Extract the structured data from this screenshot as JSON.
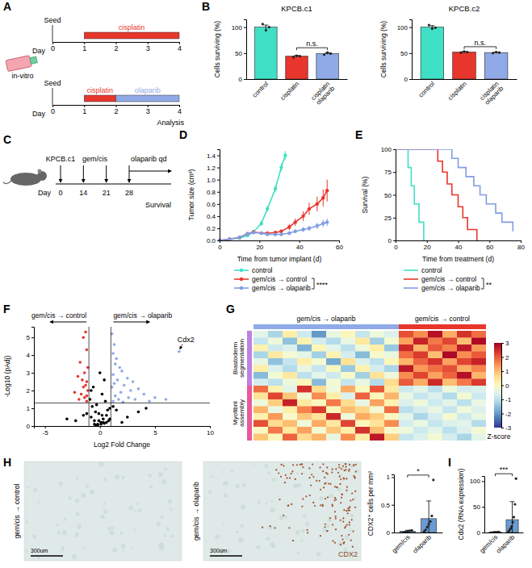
{
  "panel_letters": [
    "A",
    "B",
    "C",
    "D",
    "E",
    "F",
    "G",
    "H",
    "I"
  ],
  "panel_a": {
    "seed_label": "Seed",
    "day_label": "Day",
    "days": [
      0,
      1,
      2,
      3,
      4
    ],
    "note": "in-vitro",
    "end_label": "Analysis",
    "timelines": [
      {
        "treatments": [
          {
            "label": "cisplatin",
            "from": 1,
            "to": 4,
            "color": "#e8362c"
          }
        ]
      },
      {
        "treatments": [
          {
            "label": "cisplatin",
            "from": 1,
            "to": 2,
            "color": "#e8362c"
          },
          {
            "label": "olaparib",
            "from": 2,
            "to": 4,
            "color": "#8faae6"
          }
        ]
      }
    ]
  },
  "panel_c": {
    "model_label": "KPCB.c1",
    "day_label": "Day",
    "days": [
      0,
      14,
      21,
      28
    ],
    "gemcis_label": "gem/cis",
    "gemcis_days": [
      14,
      21
    ],
    "olaparib_label": "olaparib qd",
    "olaparib_from": 28,
    "end_label": "Survival"
  },
  "images": [
    {
      "label": "gem/cis → control",
      "scale_bar": "300um"
    },
    {
      "label": "gem/cis → olaparib",
      "scale_bar": "300um",
      "stain": "CDX2"
    }
  ],
  "chart_data": [
    {
      "type": "bar",
      "title": "KPCB.c1",
      "y_label": "Cells surviving (%)",
      "categories": [
        "control",
        "cisplatin",
        "cisplatin olaparib"
      ],
      "values": [
        100,
        44,
        49
      ],
      "errors": [
        4,
        1.5,
        1.5
      ],
      "points": [
        [
          106,
          94,
          100
        ],
        [
          42,
          45,
          44
        ],
        [
          47,
          51,
          49
        ]
      ],
      "colors": [
        "#3fe0c5",
        "#e8362c",
        "#8faae6"
      ],
      "ylim": [
        0,
        115
      ],
      "yticks": [
        0,
        50,
        100
      ],
      "annotations": [
        {
          "text": "n.s.",
          "between": [
            1,
            2
          ]
        }
      ]
    },
    {
      "type": "bar",
      "title": "KPCB.c2",
      "y_label": "Cells surviving (%)",
      "categories": [
        "control",
        "cisplatin",
        "cisplatin olaparib"
      ],
      "values": [
        100,
        52,
        51
      ],
      "errors": [
        3,
        1,
        1
      ],
      "points": [
        [
          104,
          97,
          99
        ],
        [
          51,
          53,
          52
        ],
        [
          50,
          52,
          51
        ]
      ],
      "colors": [
        "#3fe0c5",
        "#e8362c",
        "#8faae6"
      ],
      "ylim": [
        0,
        115
      ],
      "yticks": [
        0,
        50,
        100
      ],
      "annotations": [
        {
          "text": "n.s.",
          "between": [
            1,
            2
          ]
        }
      ]
    },
    {
      "type": "line",
      "marker": "circle",
      "x_label": "Time from tumor implant (d)",
      "y_label": "Tumor size (cm³)",
      "xlim": [
        0,
        60
      ],
      "xticks": [
        0,
        20,
        40,
        60
      ],
      "ylim": [
        0,
        1.5
      ],
      "yticks": [
        {
          "value": 0,
          "label": "0.0"
        },
        0.2,
        0.4,
        0.6,
        0.8,
        {
          "value": 1,
          "label": "1.0"
        },
        1.2,
        1.4
      ],
      "legend": "bottom",
      "significance": "****",
      "series": [
        {
          "name": "control",
          "color": "#3fe0c5",
          "x": [
            0,
            5,
            10,
            14,
            17,
            21,
            24,
            28,
            31,
            33
          ],
          "values": [
            0,
            0.02,
            0.04,
            0.08,
            0.14,
            0.28,
            0.52,
            0.85,
            1.2,
            1.4
          ],
          "errors": [
            0,
            0.01,
            0.01,
            0.02,
            0.03,
            0.04,
            0.05,
            0.06,
            0.06,
            0.07
          ]
        },
        {
          "name": "gem/cis → control",
          "color": "#e8362c",
          "x": [
            0,
            5,
            10,
            14,
            17,
            21,
            24,
            28,
            31,
            35,
            38,
            42,
            45,
            49,
            52,
            54
          ],
          "values": [
            0,
            0.02,
            0.05,
            0.11,
            0.14,
            0.12,
            0.12,
            0.13,
            0.15,
            0.22,
            0.3,
            0.4,
            0.52,
            0.6,
            0.7,
            0.82
          ],
          "errors": [
            0,
            0.01,
            0.01,
            0.02,
            0.02,
            0.02,
            0.02,
            0.03,
            0.03,
            0.05,
            0.06,
            0.08,
            0.1,
            0.12,
            0.14,
            0.18
          ]
        },
        {
          "name": "gem/cis → olaparib",
          "color": "#7f9de3",
          "x": [
            0,
            5,
            10,
            14,
            17,
            21,
            24,
            28,
            31,
            35,
            38,
            42,
            45,
            49,
            52,
            54
          ],
          "values": [
            0,
            0.02,
            0.05,
            0.11,
            0.13,
            0.12,
            0.1,
            0.1,
            0.1,
            0.12,
            0.15,
            0.18,
            0.2,
            0.24,
            0.28,
            0.3
          ],
          "errors": [
            0,
            0.01,
            0.01,
            0.02,
            0.02,
            0.02,
            0.02,
            0.02,
            0.02,
            0.03,
            0.03,
            0.04,
            0.04,
            0.05,
            0.06,
            0.06
          ]
        }
      ]
    },
    {
      "type": "line",
      "line_style": "step",
      "x_label": "Time from treatment (d)",
      "y_label": "Survival (%)",
      "xlim": [
        0,
        80
      ],
      "xticks": [
        0,
        20,
        40,
        60,
        80
      ],
      "ylim": [
        0,
        100
      ],
      "yticks": [
        0,
        25,
        50,
        75,
        100
      ],
      "legend": "bottom",
      "significance": "**",
      "series": [
        {
          "name": "control",
          "color": "#3fe0c5",
          "x": [
            0,
            8,
            10,
            12,
            15,
            18
          ],
          "values": [
            100,
            80,
            60,
            40,
            20,
            0
          ]
        },
        {
          "name": "gem/cis → control",
          "color": "#e8362c",
          "x": [
            0,
            27,
            30,
            33,
            36,
            40,
            43,
            46,
            52
          ],
          "values": [
            100,
            87,
            75,
            62,
            50,
            37,
            25,
            12,
            0
          ]
        },
        {
          "name": "gem/cis → olaparib",
          "color": "#7f9de3",
          "x": [
            0,
            36,
            40,
            45,
            50,
            54,
            58,
            64,
            68,
            75
          ],
          "values": [
            100,
            90,
            80,
            70,
            60,
            50,
            40,
            30,
            20,
            10
          ]
        }
      ]
    },
    {
      "type": "scatter",
      "x_label": "Log2 Fold Change",
      "y_label": "-Log10 (pAdj)",
      "xlim": [
        -6,
        10
      ],
      "xticks": [
        -5,
        0,
        5,
        10
      ],
      "ylim": [
        0,
        5.6
      ],
      "yticks": [
        0,
        1,
        2,
        3,
        4,
        5
      ],
      "vlines": [
        -1,
        1
      ],
      "hlines": [
        1.3
      ],
      "series": [
        {
          "color": "#000000",
          "x": [
            -0.2,
            0.1,
            0.3,
            -0.5,
            0.6,
            -0.8,
            0.9,
            -0.3,
            0.2,
            -0.6,
            0.4,
            -0.9,
            0.7,
            0,
            -0.1,
            0.5,
            -0.4,
            0.8,
            -0.7,
            0.3,
            -1.5,
            -2.2,
            1.5,
            2.5,
            3.5,
            -3,
            4.2,
            1.2,
            -1.2,
            2,
            -0.2,
            0.1,
            0.4,
            -0.4,
            0.6,
            -0.5,
            0.2,
            -0.1,
            0.9,
            -0.8
          ],
          "values": [
            0.1,
            0.2,
            0.4,
            0.3,
            0.6,
            0.5,
            1.0,
            1.2,
            1.8,
            2.2,
            2.6,
            1.5,
            0.9,
            3.0,
            0.7,
            1.4,
            0.8,
            0.3,
            1.1,
            0.2,
            0.6,
            0.3,
            0.9,
            0.5,
            0.8,
            0.4,
            1.0,
            1.1,
            0.7,
            0.2,
            0.05,
            0.1,
            0.15,
            0.05,
            0.2,
            0.1,
            0.6,
            0.3,
            0.4,
            2.0
          ]
        },
        {
          "color": "#e8362c",
          "x": [
            -1.3,
            -1.5,
            -1.2,
            -1.8,
            -1.1,
            -1.4,
            -2.0,
            -1.6,
            -1.2,
            -1.3,
            -1.5,
            -1.1,
            -2.3,
            -1.7,
            -1.2,
            -1.4,
            -1.9,
            -1.2
          ],
          "values": [
            5.3,
            5.0,
            4.3,
            3.6,
            3.3,
            3.0,
            2.8,
            2.6,
            2.5,
            2.3,
            2.2,
            2.0,
            1.9,
            1.8,
            1.7,
            1.6,
            1.5,
            1.4
          ]
        },
        {
          "color": "#8faae6",
          "x": [
            1.1,
            1.3,
            1.2,
            1.5,
            1.4,
            1.8,
            2.0,
            1.2,
            2.5,
            1.6,
            3.0,
            1.3,
            2.2,
            1.1,
            3.5,
            2.8,
            1.9,
            4.0,
            1.4,
            2.6,
            5.0,
            1.7,
            3.2,
            4.5,
            1.2,
            2.1,
            6.0,
            7.2
          ],
          "values": [
            5.2,
            4.6,
            4.1,
            3.8,
            3.5,
            3.3,
            3.1,
            2.9,
            2.7,
            2.6,
            2.5,
            2.4,
            2.3,
            2.2,
            2.1,
            2.0,
            1.9,
            1.8,
            1.7,
            1.6,
            1.6,
            1.5,
            1.5,
            1.4,
            1.4,
            1.35,
            1.5,
            4.2
          ]
        }
      ],
      "annotations": [
        {
          "text": "gem/cis → control",
          "direction": "left"
        },
        {
          "text": "gem/cis → olaparib",
          "direction": "right"
        },
        {
          "text": "Cdx2",
          "x": 7.2,
          "y": 4.2
        }
      ]
    },
    {
      "type": "heatmap",
      "column_groups": [
        {
          "name": "gem/cis → olaparib",
          "count": 10,
          "color": "#8faae6"
        },
        {
          "name": "gem/cis → control",
          "count": 6,
          "color": "#e8362c"
        }
      ],
      "row_groups": [
        {
          "name": "Blastoderm segmentation",
          "count": 8,
          "color": "#c080e0"
        },
        {
          "name": "Myofibril assembly",
          "count": 8,
          "color": "#e85a9a"
        }
      ],
      "cells": [
        [
          -0.5,
          -1.2,
          0.3,
          -0.8,
          -2.0,
          -0.4,
          0.1,
          -0.9,
          -0.3,
          -0.6,
          2.1,
          1.5,
          2.8,
          1.2,
          2.4,
          1.8
        ],
        [
          -0.9,
          -0.3,
          -1.5,
          0.2,
          -0.7,
          -1.1,
          -0.4,
          0.4,
          -1.3,
          -0.2,
          1.3,
          2.6,
          1.7,
          2.2,
          1.0,
          2.9
        ],
        [
          0.2,
          -0.8,
          -0.6,
          -1.7,
          0.1,
          -0.5,
          -1.0,
          -0.3,
          0.3,
          -1.4,
          2.5,
          1.1,
          2.0,
          1.6,
          2.7,
          1.4
        ],
        [
          -1.2,
          0.4,
          -0.2,
          -0.5,
          -1.3,
          0.2,
          -0.7,
          -1.6,
          -0.1,
          -0.4,
          1.8,
          2.3,
          1.0,
          2.9,
          1.5,
          2.0
        ],
        [
          -0.4,
          -1.5,
          -0.9,
          0.3,
          -0.2,
          -1.8,
          0.5,
          -0.6,
          -1.0,
          0.1,
          1.1,
          1.9,
          2.4,
          1.3,
          2.2,
          2.6
        ],
        [
          0.3,
          -0.6,
          -1.1,
          -0.4,
          -0.9,
          0.0,
          -1.4,
          0.2,
          -0.7,
          -1.2,
          2.7,
          1.4,
          1.8,
          2.1,
          1.2,
          1.6
        ],
        [
          -1.6,
          -0.2,
          0.4,
          -1.0,
          -0.5,
          -0.8,
          -0.1,
          -1.3,
          0.5,
          -0.3,
          1.5,
          2.2,
          1.3,
          1.9,
          2.8,
          1.1
        ],
        [
          -0.7,
          -1.0,
          -0.3,
          0.1,
          -1.6,
          -0.2,
          -0.9,
          -0.4,
          -1.1,
          0.6,
          2.0,
          1.2,
          2.5,
          1.0,
          1.7,
          2.3
        ],
        [
          1.8,
          0.2,
          -0.5,
          2.4,
          0.6,
          -0.3,
          1.2,
          0.0,
          2.0,
          0.4,
          -0.8,
          -0.5,
          -1.0,
          -0.3,
          -0.7,
          -0.6
        ],
        [
          0.5,
          2.2,
          0.9,
          -0.2,
          1.5,
          0.3,
          -0.6,
          1.9,
          0.1,
          1.1,
          -0.4,
          -0.9,
          -0.6,
          -1.1,
          -0.2,
          -0.8
        ],
        [
          -0.3,
          0.8,
          2.6,
          0.4,
          0.0,
          1.7,
          0.6,
          -0.4,
          1.3,
          0.2,
          -0.6,
          -0.3,
          -0.8,
          -0.5,
          -1.0,
          -0.4
        ],
        [
          1.1,
          -0.4,
          0.3,
          1.6,
          2.3,
          0.1,
          1.0,
          0.7,
          -0.2,
          1.8,
          -1.0,
          -0.7,
          -0.4,
          -0.9,
          -0.3,
          -0.6
        ],
        [
          0.2,
          1.4,
          -0.1,
          0.9,
          0.5,
          2.5,
          -0.3,
          1.2,
          0.8,
          0.0,
          -0.5,
          -1.2,
          -0.7,
          -0.2,
          -0.8,
          -0.4
        ],
        [
          2.1,
          0.6,
          1.0,
          -0.3,
          1.2,
          0.4,
          2.2,
          0.1,
          0.5,
          1.5,
          -0.7,
          -0.4,
          -0.9,
          -0.6,
          -0.5,
          -1.1
        ],
        [
          0.0,
          1.7,
          0.4,
          1.3,
          -0.2,
          0.9,
          0.3,
          2.4,
          1.0,
          -0.1,
          -0.3,
          -0.8,
          -0.5,
          -1.0,
          -0.6,
          -0.2
        ],
        [
          0.9,
          0.1,
          1.9,
          0.6,
          1.1,
          -0.4,
          1.5,
          0.3,
          2.7,
          0.8,
          -0.9,
          -0.6,
          -0.2,
          -0.7,
          -1.2,
          -0.5
        ]
      ],
      "colorbar": {
        "label": "Z-score",
        "lim": [
          -3,
          3
        ],
        "ticks": [
          -3,
          -2,
          -1,
          0,
          1,
          2,
          3
        ]
      }
    },
    {
      "type": "bar",
      "y_label": "CDX2⁺ cells per mm²",
      "categories": [
        "gem/cis",
        "olaparib"
      ],
      "values": [
        0.02,
        0.25
      ],
      "errors": [
        0.02,
        0.32
      ],
      "points": [
        [
          0,
          0.01,
          0.02,
          0.03,
          0.04
        ],
        [
          0.02,
          0.05,
          0.1,
          0.15,
          0.2,
          0.3,
          0.95
        ]
      ],
      "colors": [
        "#6b9bd2",
        "#6b9bd2"
      ],
      "ylim": [
        0,
        1.05
      ],
      "yticks": [
        0,
        0.5,
        1
      ],
      "annotations": [
        {
          "text": "*",
          "between": [
            0,
            1
          ]
        }
      ]
    },
    {
      "type": "bar",
      "y_label": "Cdx2 (RNA expression)",
      "categories": [
        "gem/cis",
        "olaparib"
      ],
      "values": [
        0.5,
        25
      ],
      "errors": [
        0.5,
        35
      ],
      "points": [
        [
          0,
          0.3,
          0.5,
          0.8,
          1
        ],
        [
          2,
          5,
          8,
          12,
          20,
          30,
          55,
          105
        ]
      ],
      "colors": [
        "#6b9bd2",
        "#6b9bd2"
      ],
      "ylim": [
        0,
        110
      ],
      "yticks": [
        0,
        50,
        100
      ],
      "annotations": [
        {
          "text": "***",
          "between": [
            0,
            1
          ]
        }
      ]
    }
  ]
}
